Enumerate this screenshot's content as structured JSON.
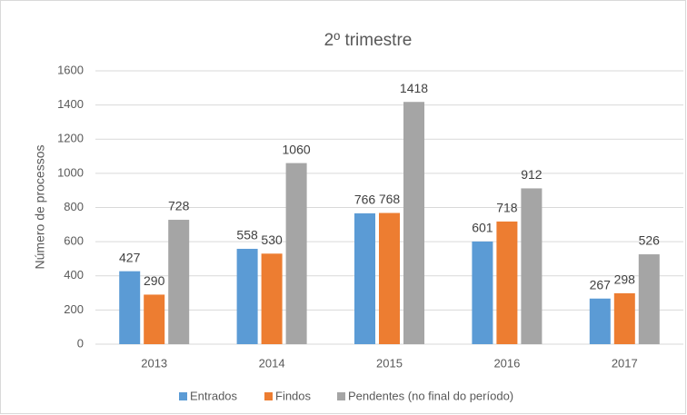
{
  "chart_data": {
    "type": "bar",
    "title": "2º trimestre",
    "y_label": "Número de processos",
    "categories": [
      "2013",
      "2014",
      "2015",
      "2016",
      "2017"
    ],
    "series": [
      {
        "name": "Entrados",
        "color": "#5b9bd5",
        "values": [
          427,
          558,
          766,
          601,
          267
        ]
      },
      {
        "name": "Findos",
        "color": "#ed7d31",
        "values": [
          290,
          530,
          768,
          718,
          298
        ]
      },
      {
        "name": "Pendentes (no final do período)",
        "color": "#a5a5a5",
        "values": [
          728,
          1060,
          1418,
          912,
          526
        ]
      }
    ],
    "ylim": [
      0,
      1600
    ],
    "yticks": [
      0,
      200,
      400,
      600,
      800,
      1000,
      1200,
      1400,
      1600
    ],
    "grid": true,
    "legend": "bottom"
  }
}
